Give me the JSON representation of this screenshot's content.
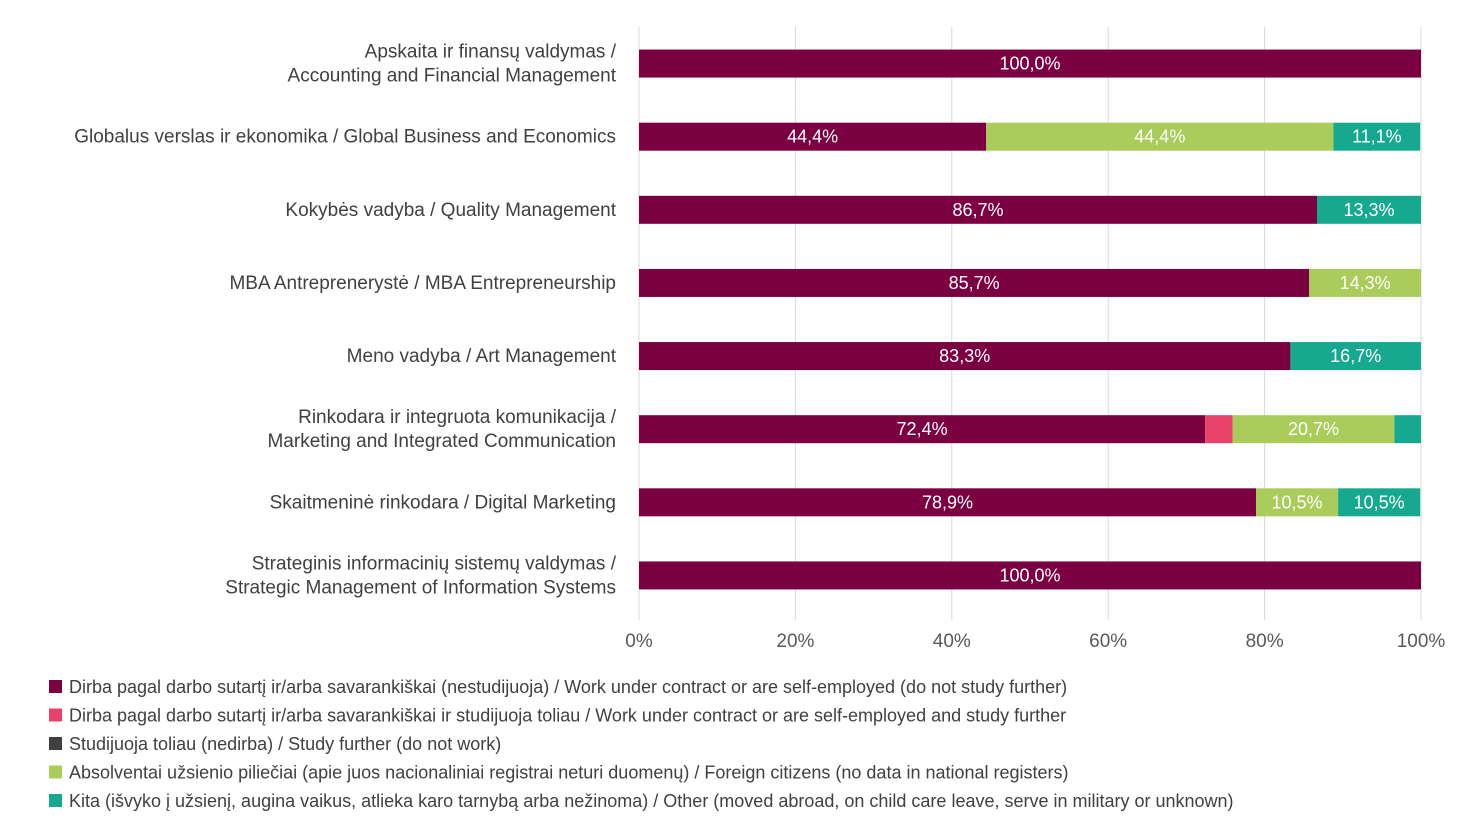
{
  "chart_data": {
    "type": "bar",
    "orientation": "horizontal",
    "stacked": true,
    "percent_stacked": true,
    "categories": [
      [
        "Apskaita ir finansų valdymas /",
        "Accounting and Financial Management"
      ],
      [
        "Globalus verslas ir ekonomika / Global Business and Economics"
      ],
      [
        "Kokybės vadyba / Quality Management"
      ],
      [
        "MBA Antreprenerystė / MBA Entrepreneurship"
      ],
      [
        "Meno vadyba / Art Management"
      ],
      [
        "Rinkodara ir integruota komunikacija /",
        "Marketing and Integrated Communication"
      ],
      [
        "Skaitmeninė rinkodara / Digital Marketing"
      ],
      [
        "Strateginis informacinių sistemų valdymas /",
        "Strategic Management of Information Systems"
      ]
    ],
    "series": [
      {
        "name": "Dirba pagal darbo sutartį ir/arba savarankiškai (nestudijuoja) / Work under contract or are self-employed (do not study further)",
        "color": "#7b0041",
        "values": [
          100.0,
          44.4,
          86.7,
          85.7,
          83.3,
          72.4,
          78.9,
          100.0
        ],
        "labels": [
          "100,0%",
          "44,4%",
          "86,7%",
          "85,7%",
          "83,3%",
          "72,4%",
          "78,9%",
          "100,0%"
        ]
      },
      {
        "name": "Dirba pagal darbo sutartį ir/arba savarankiškai  ir studijuoja toliau / Work under contract or are self-employed and study further",
        "color": "#e8416a",
        "values": [
          0,
          0,
          0,
          0,
          0,
          3.5,
          0,
          0
        ],
        "labels": [
          "",
          "",
          "",
          "",
          "",
          "",
          "",
          ""
        ]
      },
      {
        "name": "Studijuoja toliau (nedirba) / Study further (do not work)",
        "color": "#404040",
        "values": [
          0,
          0,
          0,
          0,
          0,
          0,
          0,
          0
        ],
        "labels": [
          "",
          "",
          "",
          "",
          "",
          "",
          "",
          ""
        ]
      },
      {
        "name": "Absolventai užsienio piliečiai (apie juos nacionaliniai registrai neturi duomenų) / Foreign citizens (no data in national registers)",
        "color": "#a9cc5a",
        "values": [
          0,
          44.4,
          0,
          14.3,
          0,
          20.7,
          10.5,
          0
        ],
        "labels": [
          "",
          "44,4%",
          "",
          "14,3%",
          "",
          "20,7%",
          "10,5%",
          ""
        ]
      },
      {
        "name": "Kita (išvyko į užsienį, augina vaikus, atlieka karo tarnybą arba nežinoma) / Other (moved abroad, on child care leave, serve in military or unknown)",
        "color": "#17a98f",
        "values": [
          0,
          11.1,
          13.3,
          0,
          16.7,
          3.4,
          10.5,
          0
        ],
        "labels": [
          "",
          "11,1%",
          "13,3%",
          "",
          "16,7%",
          "",
          "10,5%",
          ""
        ]
      }
    ],
    "xlim": [
      0,
      100
    ],
    "xticks": [
      0,
      20,
      40,
      60,
      80,
      100
    ],
    "xtick_labels": [
      "0%",
      "20%",
      "40%",
      "60%",
      "80%",
      "100%"
    ],
    "grid": "vertical",
    "legend_position": "bottom",
    "title": "",
    "xlabel": "",
    "ylabel": ""
  }
}
